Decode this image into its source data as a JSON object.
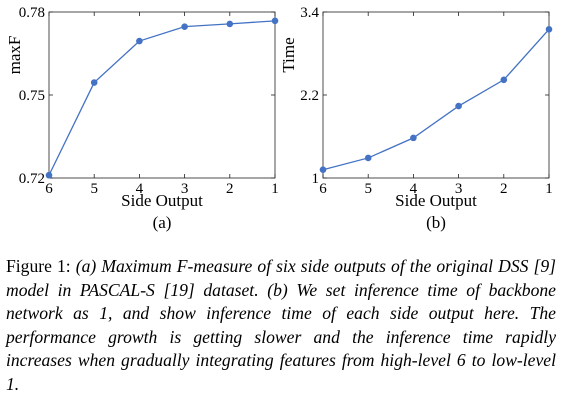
{
  "chart_data": [
    {
      "type": "line",
      "panel_label": "(a)",
      "xlabel": "Side Output",
      "ylabel": "maxF",
      "categories": [
        "6",
        "5",
        "4",
        "3",
        "2",
        "1"
      ],
      "series": [
        {
          "values": [
            0.721,
            0.7545,
            0.7695,
            0.7747,
            0.7757,
            0.7768
          ]
        }
      ],
      "ylim": [
        0.72,
        0.78
      ],
      "yticks": [
        "0.72",
        "0.75",
        "0.78"
      ],
      "color": "#4472c4",
      "grid": false
    },
    {
      "type": "line",
      "panel_label": "(b)",
      "xlabel": "Side Output",
      "ylabel": "Time",
      "categories": [
        "6",
        "5",
        "4",
        "3",
        "2",
        "1"
      ],
      "series": [
        {
          "values": [
            1.12,
            1.29,
            1.58,
            2.04,
            2.42,
            3.15
          ]
        }
      ],
      "ylim": [
        1,
        3.4
      ],
      "yticks": [
        "1",
        "2.2",
        "3.4"
      ],
      "color": "#4472c4",
      "grid": false
    }
  ],
  "caption": {
    "lead": "Figure 1: ",
    "body": "(a) Maximum F-measure of six side outputs of the original DSS [9] model in PASCAL-S [19] dataset. (b) We set inference time of backbone network as 1, and show inference time of each side output here. The performance growth is getting slower and the inference time rapidly increases when gradually integrating features from high-level 6 to low-level 1."
  }
}
